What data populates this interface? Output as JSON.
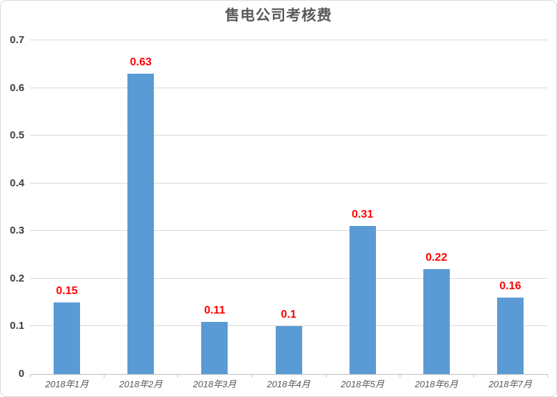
{
  "chart_data": {
    "type": "bar",
    "title": "售电公司考核费",
    "categories": [
      "2018年1月",
      "2018年2月",
      "2018年3月",
      "2018年4月",
      "2018年5月",
      "2018年6月",
      "2018年7月"
    ],
    "values": [
      0.15,
      0.63,
      0.11,
      0.1,
      0.31,
      0.22,
      0.16
    ],
    "data_labels": [
      "0.15",
      "0.63",
      "0.11",
      "0.1",
      "0.31",
      "0.22",
      "0.16"
    ],
    "xlabel": "",
    "ylabel": "",
    "ylim": [
      0,
      0.7
    ],
    "ytick_interval": 0.1,
    "yticks": [
      "0",
      "0.1",
      "0.2",
      "0.3",
      "0.4",
      "0.5",
      "0.6",
      "0.7"
    ],
    "grid": true,
    "legend": "none",
    "colors": {
      "bar": "#5B9BD5",
      "data_label": "#FF0000",
      "title": "#595959",
      "y_tick_label": "#404040",
      "x_tick_label": "#595959",
      "gridline": "#D9D9D9",
      "axis_line": "#BFBFBF",
      "border": "#D9D9D9",
      "background": "#FFFFFF"
    }
  }
}
